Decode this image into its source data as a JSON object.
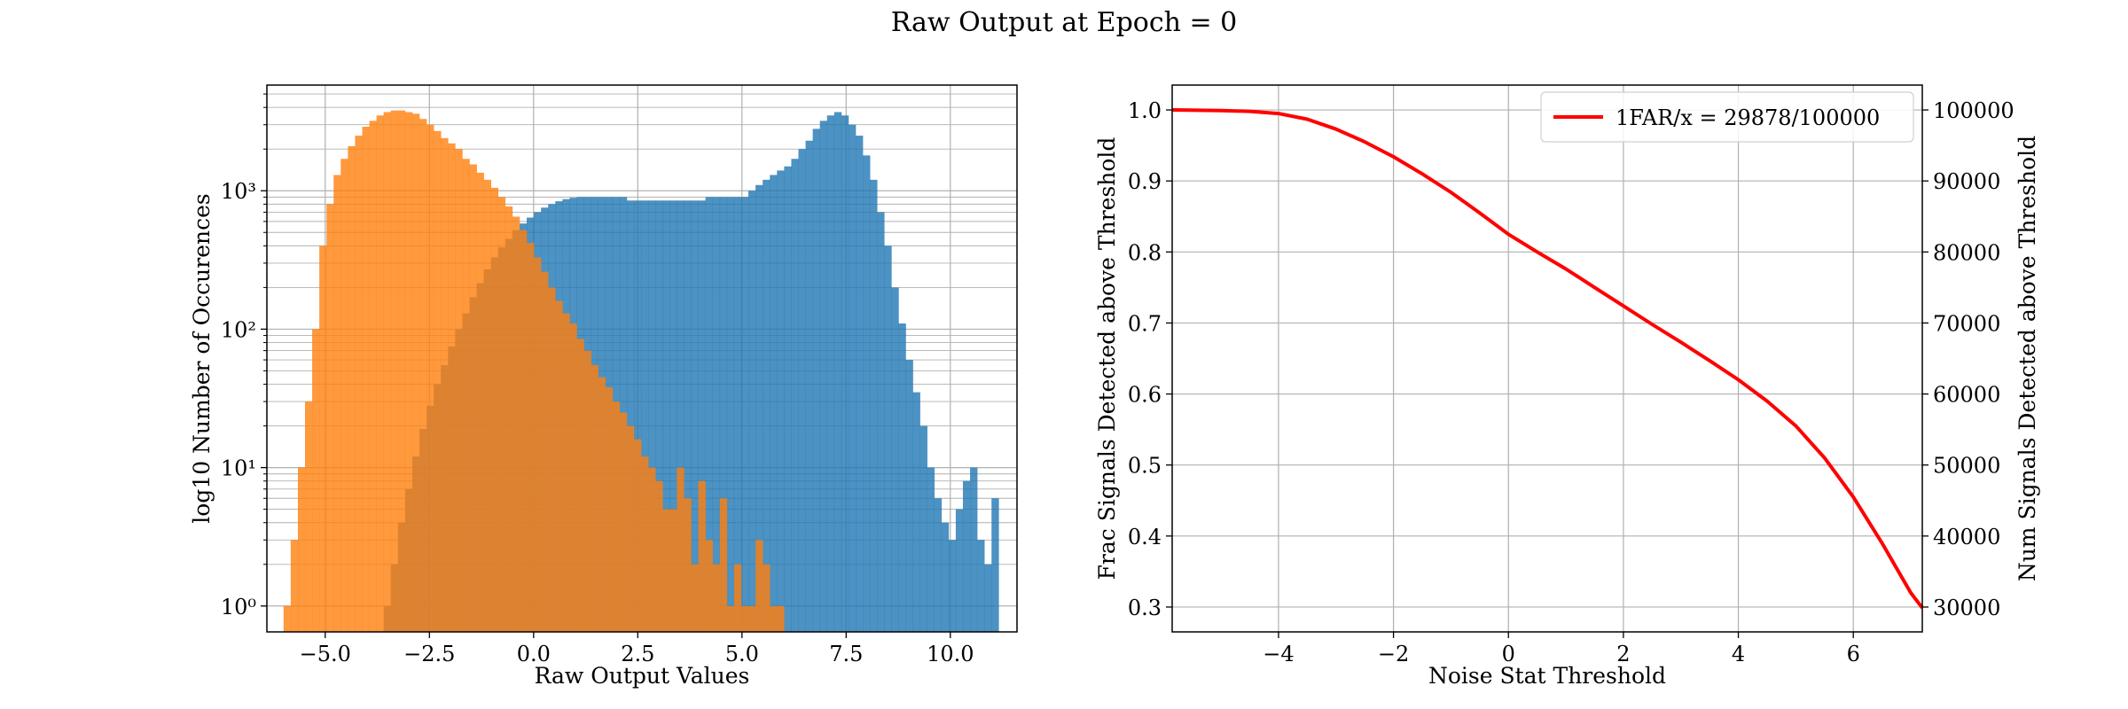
{
  "figure": {
    "title": "Raw Output at Epoch = 0"
  },
  "chart_data": [
    {
      "type": "histogram",
      "xlabel": "Raw Output Values",
      "ylabel": "log10 Number of Occurences",
      "xlim": [
        -6.4,
        11.6
      ],
      "ylim": [
        0.65,
        5800
      ],
      "yscale": "log",
      "grid": true,
      "bin_edges": {
        "start": -6.0,
        "width": 0.1716,
        "count": 100
      },
      "xticks": [
        -5.0,
        -2.5,
        0.0,
        2.5,
        5.0,
        7.5,
        10.0
      ],
      "xtick_labels": [
        "−5.0",
        "−2.5",
        "0.0",
        "2.5",
        "5.0",
        "7.5",
        "10.0"
      ],
      "yticks": [
        1,
        10,
        100,
        1000
      ],
      "ytick_labels": [
        "10⁰",
        "10¹",
        "10²",
        "10³"
      ],
      "series": [
        {
          "color": "#1f77b4",
          "alpha": 0.8,
          "values": [
            0,
            0,
            0,
            0,
            0,
            0,
            0,
            0,
            0,
            0,
            0,
            0,
            0,
            0,
            1,
            2,
            4,
            7,
            12,
            19,
            28,
            40,
            55,
            75,
            100,
            130,
            170,
            215,
            270,
            330,
            390,
            450,
            520,
            580,
            640,
            700,
            755,
            800,
            840,
            870,
            890,
            900,
            900,
            900,
            900,
            900,
            900,
            900,
            850,
            850,
            850,
            850,
            850,
            850,
            850,
            850,
            850,
            850,
            850,
            900,
            900,
            900,
            900,
            900,
            900,
            1000,
            1100,
            1200,
            1300,
            1400,
            1500,
            1700,
            2000,
            2300,
            2800,
            3200,
            3500,
            3700,
            3500,
            3000,
            2500,
            1800,
            1200,
            700,
            400,
            200,
            110,
            60,
            35,
            20,
            10,
            6,
            4,
            3,
            5,
            8,
            10,
            3,
            2,
            6
          ]
        },
        {
          "color": "#ff7f0e",
          "alpha": 0.8,
          "values": [
            1,
            3,
            10,
            30,
            100,
            400,
            800,
            1300,
            1700,
            2100,
            2500,
            2900,
            3200,
            3500,
            3700,
            3800,
            3800,
            3700,
            3600,
            3300,
            3000,
            2700,
            2400,
            2200,
            2000,
            1700,
            1550,
            1350,
            1200,
            1050,
            900,
            770,
            650,
            520,
            420,
            330,
            260,
            200,
            160,
            130,
            110,
            85,
            70,
            55,
            45,
            38,
            30,
            25,
            20,
            16,
            12,
            10,
            8,
            5,
            5,
            10,
            6,
            2,
            8,
            3,
            2,
            6,
            1,
            2,
            1,
            1,
            3,
            2,
            1,
            1
          ]
        }
      ]
    },
    {
      "type": "line",
      "xlabel": "Noise Stat Threshold",
      "ylabel": "Frac Signals Detected above Threshold",
      "ylabel_right": "Num Signals Detected above Threshold",
      "xlim": [
        -5.85,
        7.2
      ],
      "ylim": [
        0.265,
        1.035
      ],
      "ylim_right": [
        26500,
        103500
      ],
      "grid": true,
      "legend_position": "top-right",
      "xticks": [
        -4,
        -2,
        0,
        2,
        4,
        6
      ],
      "xtick_labels": [
        "−4",
        "−2",
        "0",
        "2",
        "4",
        "6"
      ],
      "yticks": [
        0.3,
        0.4,
        0.5,
        0.6,
        0.7,
        0.8,
        0.9,
        1.0
      ],
      "ytick_labels": [
        "0.3",
        "0.4",
        "0.5",
        "0.6",
        "0.7",
        "0.8",
        "0.9",
        "1.0"
      ],
      "yticks_right": [
        30000,
        40000,
        50000,
        60000,
        70000,
        80000,
        90000,
        100000
      ],
      "ytick_labels_right": [
        "30000",
        "40000",
        "50000",
        "60000",
        "70000",
        "80000",
        "90000",
        "100000"
      ],
      "series": [
        {
          "name": "1FAR/x = 29878/100000",
          "color": "#ff0000",
          "x": [
            -5.85,
            -5.0,
            -4.5,
            -4.0,
            -3.5,
            -3.0,
            -2.5,
            -2.0,
            -1.5,
            -1.0,
            -0.5,
            0.0,
            0.5,
            1.0,
            1.5,
            2.0,
            2.5,
            3.0,
            3.5,
            4.0,
            4.5,
            5.0,
            5.5,
            6.0,
            6.5,
            7.0,
            7.2
          ],
          "y": [
            1.0,
            0.999,
            0.998,
            0.995,
            0.987,
            0.973,
            0.955,
            0.934,
            0.91,
            0.884,
            0.855,
            0.825,
            0.8,
            0.776,
            0.75,
            0.724,
            0.698,
            0.673,
            0.647,
            0.62,
            0.59,
            0.555,
            0.51,
            0.455,
            0.39,
            0.32,
            0.2988
          ]
        }
      ]
    }
  ]
}
